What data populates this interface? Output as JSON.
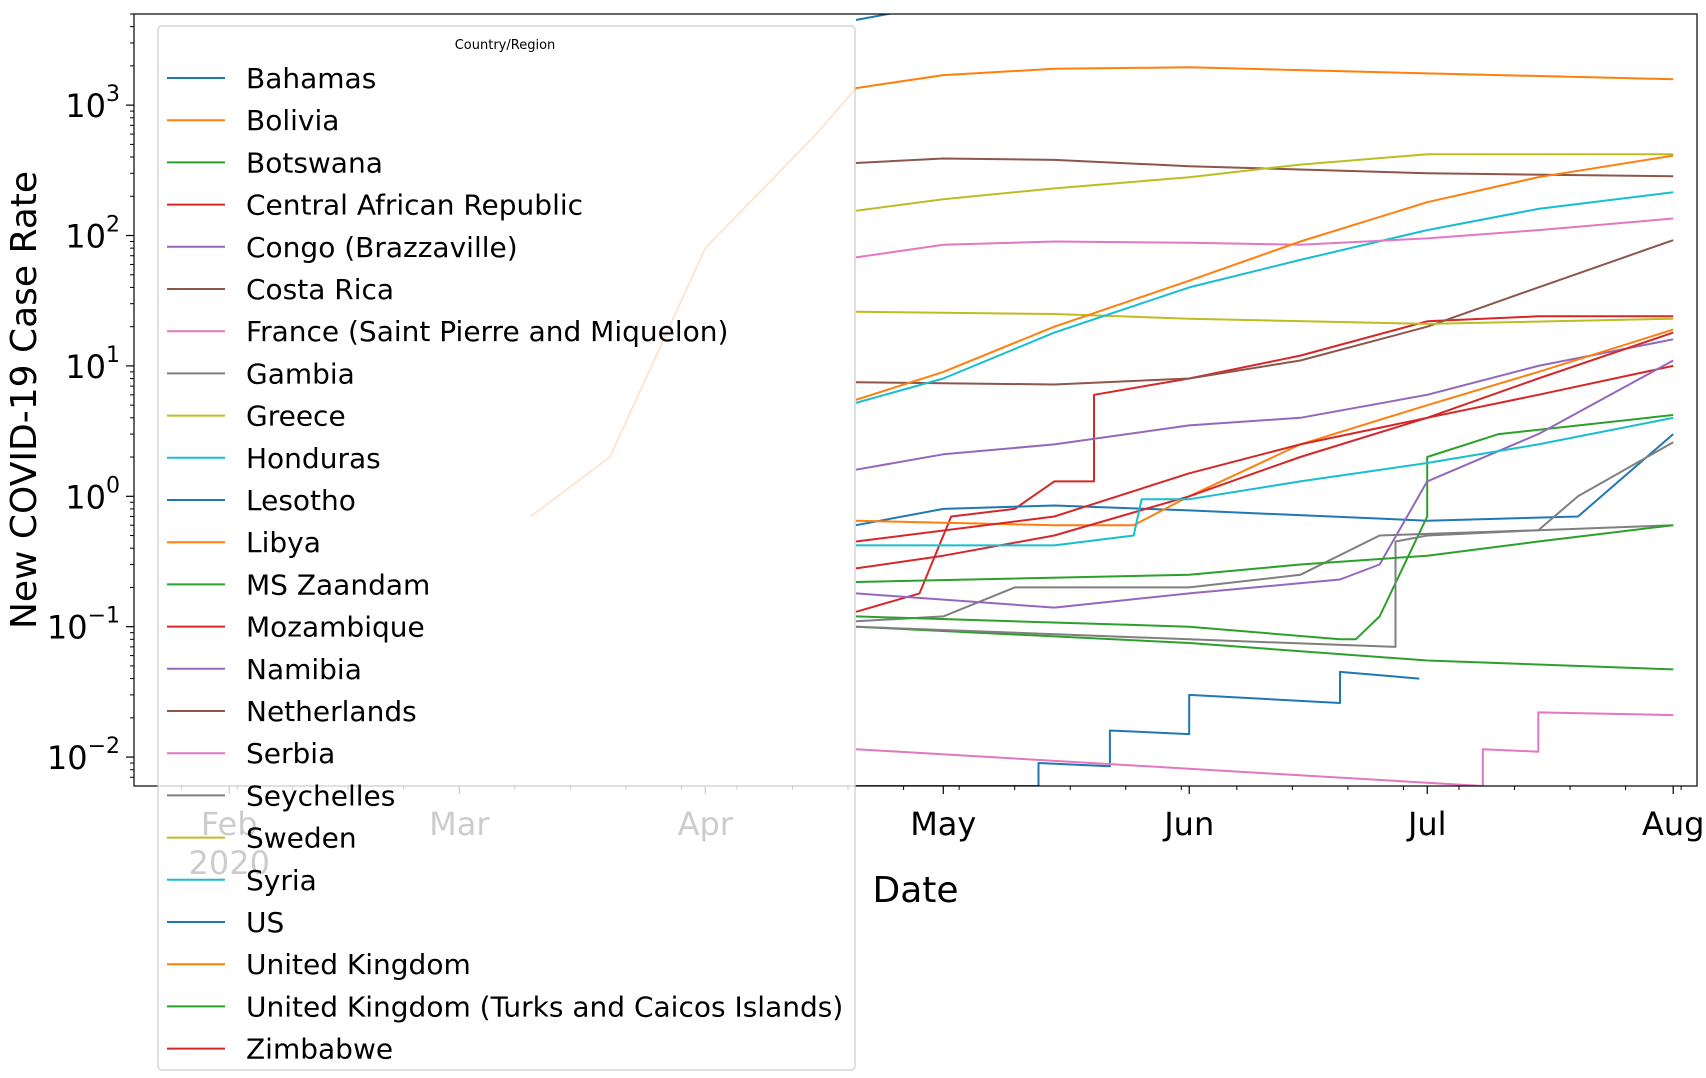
{
  "chart_data": {
    "type": "line",
    "xlabel": "Date",
    "ylabel": "New COVID-19 Case Rate",
    "y_scale": "log",
    "ylim": [
      0.006,
      5000
    ],
    "xlim": [
      "2020-01-20",
      "2020-08-04"
    ],
    "x_ticks": [
      {
        "date": "2020-02-01",
        "label": "Feb"
      },
      {
        "date": "2020-03-01",
        "label": "Mar"
      },
      {
        "date": "2020-04-01",
        "label": "Apr"
      },
      {
        "date": "2020-05-01",
        "label": "May"
      },
      {
        "date": "2020-06-01",
        "label": "Jun"
      },
      {
        "date": "2020-07-01",
        "label": "Jul"
      },
      {
        "date": "2020-08-01",
        "label": "Aug"
      }
    ],
    "x_year_label": "2020",
    "y_ticks": [
      {
        "value": 0.01,
        "exp": "−2"
      },
      {
        "value": 0.1,
        "exp": "−1"
      },
      {
        "value": 1,
        "exp": "0"
      },
      {
        "value": 10,
        "exp": "1"
      },
      {
        "value": 100,
        "exp": "2"
      },
      {
        "value": 1000,
        "exp": "3"
      }
    ],
    "y_tick_base": "10",
    "grid": false,
    "legend": {
      "title": "Country/Region",
      "placement": "upper left"
    },
    "series": [
      {
        "name": "Bahamas",
        "color": "#1f77b4",
        "points": [
          [
            "2020-04-20",
            0.006
          ],
          [
            "2020-05-13",
            0.006
          ],
          [
            "2020-05-13",
            0.009
          ],
          [
            "2020-05-22",
            0.0085
          ],
          [
            "2020-05-22",
            0.016
          ],
          [
            "2020-06-01",
            0.015
          ],
          [
            "2020-06-01",
            0.03
          ],
          [
            "2020-06-20",
            0.026
          ],
          [
            "2020-06-20",
            0.045
          ],
          [
            "2020-06-30",
            0.04
          ]
        ]
      },
      {
        "name": "Bolivia",
        "color": "#ff7f0e",
        "points": [
          [
            "2020-03-10",
            0.7
          ],
          [
            "2020-03-20",
            2
          ],
          [
            "2020-04-01",
            80
          ],
          [
            "2020-04-15",
            600
          ],
          [
            "2020-04-20",
            1350
          ],
          [
            "2020-05-01",
            1700
          ],
          [
            "2020-05-15",
            1900
          ],
          [
            "2020-06-01",
            1950
          ],
          [
            "2020-07-01",
            1750
          ],
          [
            "2020-08-01",
            1580
          ]
        ]
      },
      {
        "name": "Botswana",
        "color": "#2ca02c",
        "points": [
          [
            "2020-04-20",
            0.1
          ],
          [
            "2020-06-01",
            0.075
          ],
          [
            "2020-07-01",
            0.055
          ],
          [
            "2020-08-01",
            0.047
          ]
        ]
      },
      {
        "name": "Central African Republic",
        "color": "#d62728",
        "points": [
          [
            "2020-04-20",
            0.13
          ],
          [
            "2020-04-28",
            0.18
          ],
          [
            "2020-05-02",
            0.7
          ],
          [
            "2020-05-10",
            0.8
          ],
          [
            "2020-05-15",
            1.3
          ],
          [
            "2020-05-20",
            1.3
          ],
          [
            "2020-05-20",
            6
          ],
          [
            "2020-06-01",
            8
          ],
          [
            "2020-06-15",
            12
          ],
          [
            "2020-07-01",
            22
          ],
          [
            "2020-07-15",
            24
          ],
          [
            "2020-08-01",
            24
          ]
        ]
      },
      {
        "name": "Congo (Brazzaville)",
        "color": "#9467bd",
        "points": [
          [
            "2020-04-20",
            1.6
          ],
          [
            "2020-05-01",
            2.1
          ],
          [
            "2020-05-15",
            2.5
          ],
          [
            "2020-06-01",
            3.5
          ],
          [
            "2020-06-15",
            4
          ],
          [
            "2020-07-01",
            6
          ],
          [
            "2020-07-15",
            10
          ],
          [
            "2020-08-01",
            16
          ]
        ]
      },
      {
        "name": "Costa Rica",
        "color": "#8c564b",
        "points": [
          [
            "2020-04-20",
            7.5
          ],
          [
            "2020-05-15",
            7.2
          ],
          [
            "2020-06-01",
            8
          ],
          [
            "2020-06-15",
            11
          ],
          [
            "2020-07-01",
            20
          ],
          [
            "2020-07-15",
            40
          ],
          [
            "2020-08-01",
            92
          ]
        ]
      },
      {
        "name": "France (Saint Pierre and Miquelon)",
        "color": "#e377c2",
        "points": [
          [
            "2020-04-20",
            0.0115
          ],
          [
            "2020-07-08",
            0.006
          ],
          [
            "2020-07-08",
            0.0115
          ],
          [
            "2020-07-15",
            0.011
          ],
          [
            "2020-07-15",
            0.022
          ],
          [
            "2020-08-01",
            0.021
          ]
        ]
      },
      {
        "name": "Gambia",
        "color": "#7f7f7f",
        "points": [
          [
            "2020-04-20",
            0.11
          ],
          [
            "2020-05-01",
            0.12
          ],
          [
            "2020-05-10",
            0.2
          ],
          [
            "2020-06-01",
            0.2
          ],
          [
            "2020-06-15",
            0.25
          ],
          [
            "2020-06-25",
            0.5
          ],
          [
            "2020-07-15",
            0.55
          ],
          [
            "2020-08-01",
            0.6
          ]
        ]
      },
      {
        "name": "Greece",
        "color": "#bcbd22",
        "points": [
          [
            "2020-04-20",
            26
          ],
          [
            "2020-05-15",
            25
          ],
          [
            "2020-06-01",
            23
          ],
          [
            "2020-07-01",
            21
          ],
          [
            "2020-08-01",
            23
          ]
        ]
      },
      {
        "name": "Honduras",
        "color": "#17becf",
        "points": [
          [
            "2020-04-20",
            5.2
          ],
          [
            "2020-05-01",
            8
          ],
          [
            "2020-05-15",
            18
          ],
          [
            "2020-06-01",
            40
          ],
          [
            "2020-06-15",
            65
          ],
          [
            "2020-07-01",
            110
          ],
          [
            "2020-07-15",
            160
          ],
          [
            "2020-08-01",
            215
          ]
        ]
      },
      {
        "name": "Lesotho",
        "color": "#1f77b4",
        "points": [
          [
            "2020-04-20",
            0.6
          ],
          [
            "2020-05-01",
            0.8
          ],
          [
            "2020-05-15",
            0.85
          ],
          [
            "2020-06-01",
            0.78
          ],
          [
            "2020-07-01",
            0.65
          ],
          [
            "2020-07-20",
            0.7
          ],
          [
            "2020-08-01",
            3
          ]
        ]
      },
      {
        "name": "Libya",
        "color": "#ff7f0e",
        "points": [
          [
            "2020-04-20",
            0.65
          ],
          [
            "2020-05-15",
            0.6
          ],
          [
            "2020-05-25",
            0.6
          ],
          [
            "2020-06-01",
            1
          ],
          [
            "2020-06-15",
            2.5
          ],
          [
            "2020-07-01",
            5
          ],
          [
            "2020-07-15",
            9
          ],
          [
            "2020-08-01",
            19
          ]
        ]
      },
      {
        "name": "MS Zaandam",
        "color": "#2ca02c",
        "points": [
          [
            "2020-04-20",
            0.12
          ],
          [
            "2020-06-01",
            0.1
          ],
          [
            "2020-06-20",
            0.08
          ],
          [
            "2020-06-22",
            0.08
          ],
          [
            "2020-06-25",
            0.12
          ],
          [
            "2020-07-01",
            0.7
          ],
          [
            "2020-07-01",
            2
          ],
          [
            "2020-07-10",
            3
          ],
          [
            "2020-08-01",
            4.2
          ]
        ]
      },
      {
        "name": "Mozambique",
        "color": "#d62728",
        "points": [
          [
            "2020-04-20",
            0.28
          ],
          [
            "2020-05-01",
            0.35
          ],
          [
            "2020-05-15",
            0.5
          ],
          [
            "2020-06-01",
            1
          ],
          [
            "2020-06-15",
            2
          ],
          [
            "2020-07-01",
            4
          ],
          [
            "2020-07-15",
            6
          ],
          [
            "2020-08-01",
            10
          ]
        ]
      },
      {
        "name": "Namibia",
        "color": "#9467bd",
        "points": [
          [
            "2020-04-20",
            0.18
          ],
          [
            "2020-05-15",
            0.14
          ],
          [
            "2020-06-01",
            0.18
          ],
          [
            "2020-06-20",
            0.23
          ],
          [
            "2020-06-25",
            0.3
          ],
          [
            "2020-07-01",
            1.3
          ],
          [
            "2020-07-15",
            3
          ],
          [
            "2020-08-01",
            11
          ]
        ]
      },
      {
        "name": "Netherlands",
        "color": "#8c564b",
        "points": [
          [
            "2020-04-20",
            360
          ],
          [
            "2020-05-01",
            390
          ],
          [
            "2020-05-15",
            380
          ],
          [
            "2020-06-01",
            340
          ],
          [
            "2020-07-01",
            300
          ],
          [
            "2020-08-01",
            285
          ]
        ]
      },
      {
        "name": "Serbia",
        "color": "#e377c2",
        "points": [
          [
            "2020-04-20",
            68
          ],
          [
            "2020-05-01",
            85
          ],
          [
            "2020-05-15",
            90
          ],
          [
            "2020-06-01",
            88
          ],
          [
            "2020-06-15",
            85
          ],
          [
            "2020-07-01",
            95
          ],
          [
            "2020-07-15",
            110
          ],
          [
            "2020-08-01",
            135
          ]
        ]
      },
      {
        "name": "Seychelles",
        "color": "#7f7f7f",
        "points": [
          [
            "2020-04-20",
            0.1
          ],
          [
            "2020-06-01",
            0.08
          ],
          [
            "2020-06-27",
            0.07
          ],
          [
            "2020-06-27",
            0.45
          ],
          [
            "2020-07-01",
            0.5
          ],
          [
            "2020-07-15",
            0.55
          ],
          [
            "2020-07-20",
            1
          ],
          [
            "2020-08-01",
            2.6
          ]
        ]
      },
      {
        "name": "Sweden",
        "color": "#bcbd22",
        "points": [
          [
            "2020-04-20",
            155
          ],
          [
            "2020-05-01",
            190
          ],
          [
            "2020-05-15",
            230
          ],
          [
            "2020-06-01",
            280
          ],
          [
            "2020-06-15",
            350
          ],
          [
            "2020-07-01",
            420
          ],
          [
            "2020-08-01",
            420
          ]
        ]
      },
      {
        "name": "Syria",
        "color": "#17becf",
        "points": [
          [
            "2020-04-20",
            0.42
          ],
          [
            "2020-05-15",
            0.42
          ],
          [
            "2020-05-25",
            0.5
          ],
          [
            "2020-05-26",
            0.95
          ],
          [
            "2020-06-01",
            0.95
          ],
          [
            "2020-06-15",
            1.3
          ],
          [
            "2020-07-01",
            1.8
          ],
          [
            "2020-07-15",
            2.5
          ],
          [
            "2020-08-01",
            4
          ]
        ]
      },
      {
        "name": "US",
        "color": "#1f77b4",
        "points": [
          [
            "2020-04-20",
            4500
          ],
          [
            "2020-05-01",
            6000
          ],
          [
            "2020-08-01",
            6000
          ]
        ]
      },
      {
        "name": "United Kingdom",
        "color": "#ff7f0e",
        "points": [
          [
            "2020-04-20",
            5.5
          ],
          [
            "2020-05-01",
            9
          ],
          [
            "2020-05-15",
            20
          ],
          [
            "2020-06-01",
            45
          ],
          [
            "2020-06-15",
            90
          ],
          [
            "2020-07-01",
            180
          ],
          [
            "2020-07-15",
            280
          ],
          [
            "2020-08-01",
            410
          ]
        ]
      },
      {
        "name": "United Kingdom (Turks and Caicos Islands)",
        "color": "#2ca02c",
        "points": [
          [
            "2020-04-20",
            0.22
          ],
          [
            "2020-06-01",
            0.25
          ],
          [
            "2020-06-15",
            0.3
          ],
          [
            "2020-07-01",
            0.35
          ],
          [
            "2020-07-15",
            0.45
          ],
          [
            "2020-08-01",
            0.6
          ]
        ]
      },
      {
        "name": "Zimbabwe",
        "color": "#d62728",
        "points": [
          [
            "2020-04-20",
            0.45
          ],
          [
            "2020-05-15",
            0.7
          ],
          [
            "2020-06-01",
            1.5
          ],
          [
            "2020-06-15",
            2.5
          ],
          [
            "2020-07-01",
            4
          ],
          [
            "2020-07-15",
            8
          ],
          [
            "2020-08-01",
            18
          ]
        ]
      }
    ]
  }
}
